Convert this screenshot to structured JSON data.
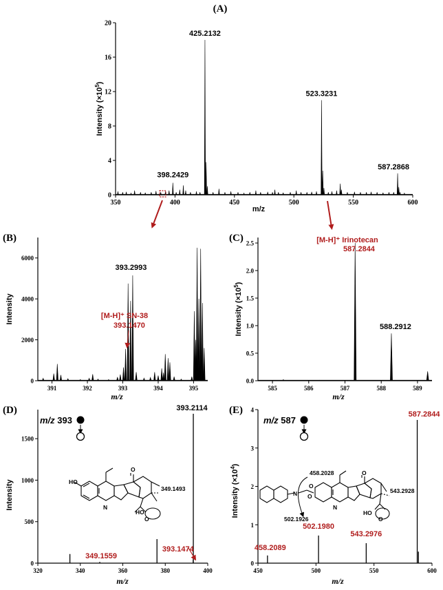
{
  "colors": {
    "ink": "#000000",
    "accent_red": "#b01c1c"
  },
  "chart_data": [
    {
      "id": "A",
      "type": "line",
      "title": "(A)",
      "xlabel": "m/z",
      "ylabel": "Intensity (×10",
      "ylabel_sup": "5",
      "ylabel_end": ")",
      "xlim": [
        350,
        600
      ],
      "ylim": [
        0,
        20
      ],
      "xticks": [
        350,
        400,
        450,
        500,
        550,
        600
      ],
      "yticks": [
        0,
        4,
        8,
        12,
        16,
        20
      ],
      "peaks": [
        [
          352,
          0.4
        ],
        [
          356,
          0.3
        ],
        [
          359,
          0.35
        ],
        [
          363,
          0.2
        ],
        [
          366,
          0.5
        ],
        [
          371,
          0.3
        ],
        [
          375,
          0.25
        ],
        [
          380,
          0.3
        ],
        [
          384,
          0.45
        ],
        [
          388,
          0.3
        ],
        [
          392,
          0.4
        ],
        [
          395,
          0.5
        ],
        [
          398.2,
          1.4
        ],
        [
          401,
          0.3
        ],
        [
          404,
          0.6
        ],
        [
          407,
          1.1
        ],
        [
          409,
          0.5
        ],
        [
          413,
          0.3
        ],
        [
          418,
          0.4
        ],
        [
          421,
          0.3
        ],
        [
          425.2,
          18.0
        ],
        [
          426.2,
          3.8
        ],
        [
          427.2,
          1.0
        ],
        [
          432,
          0.3
        ],
        [
          437,
          0.7
        ],
        [
          442,
          0.3
        ],
        [
          447,
          0.4
        ],
        [
          453,
          0.3
        ],
        [
          458,
          0.2
        ],
        [
          463,
          0.3
        ],
        [
          468,
          0.5
        ],
        [
          472,
          0.3
        ],
        [
          478,
          0.35
        ],
        [
          482,
          0.3
        ],
        [
          484,
          0.6
        ],
        [
          487,
          0.3
        ],
        [
          491,
          0.25
        ],
        [
          497,
          0.3
        ],
        [
          502,
          0.5
        ],
        [
          506,
          0.3
        ],
        [
          511,
          0.3
        ],
        [
          515,
          0.35
        ],
        [
          519,
          0.4
        ],
        [
          523.3,
          11.0
        ],
        [
          524.3,
          2.8
        ],
        [
          525.3,
          0.8
        ],
        [
          529,
          0.3
        ],
        [
          532,
          0.4
        ],
        [
          536,
          0.5
        ],
        [
          539,
          1.3
        ],
        [
          540,
          0.6
        ],
        [
          545,
          0.3
        ],
        [
          551,
          0.35
        ],
        [
          556,
          0.3
        ],
        [
          561,
          0.3
        ],
        [
          565,
          0.35
        ],
        [
          570,
          0.3
        ],
        [
          575,
          0.25
        ],
        [
          580,
          0.3
        ],
        [
          584,
          0.3
        ],
        [
          587.3,
          2.5
        ],
        [
          588.3,
          0.9
        ],
        [
          589.3,
          0.3
        ],
        [
          593,
          0.2
        ]
      ],
      "annotations": [
        {
          "label": "425.2132",
          "x": 425.2,
          "y": 18.0
        },
        {
          "label": "523.3231",
          "x": 523.3,
          "y": 11.0
        },
        {
          "label": "587.2868",
          "x": 587.3,
          "y": 2.5
        },
        {
          "label": "398.2429",
          "x": 398.2,
          "y": 1.4
        }
      ]
    },
    {
      "id": "B",
      "type": "line",
      "title": "(B)",
      "xlabel": "m/z",
      "ylabel": "Intensity",
      "xlim": [
        390.6,
        395.4
      ],
      "ylim": [
        0,
        7000
      ],
      "xticks": [
        391,
        392,
        393,
        394,
        395
      ],
      "yticks": [
        0,
        2000,
        4000,
        6000
      ],
      "peaks": [
        [
          390.75,
          120
        ],
        [
          391.05,
          350
        ],
        [
          391.15,
          820
        ],
        [
          391.25,
          280
        ],
        [
          391.45,
          100
        ],
        [
          391.8,
          60
        ],
        [
          392.05,
          120
        ],
        [
          392.15,
          320
        ],
        [
          392.3,
          80
        ],
        [
          392.6,
          60
        ],
        [
          392.85,
          180
        ],
        [
          392.93,
          300
        ],
        [
          393.02,
          650
        ],
        [
          393.08,
          1550
        ],
        [
          393.15,
          4750
        ],
        [
          393.22,
          3900
        ],
        [
          393.28,
          5150
        ],
        [
          393.38,
          420
        ],
        [
          393.6,
          130
        ],
        [
          393.78,
          160
        ],
        [
          393.9,
          420
        ],
        [
          394.0,
          250
        ],
        [
          394.1,
          600
        ],
        [
          394.15,
          400
        ],
        [
          394.2,
          1300
        ],
        [
          394.28,
          1100
        ],
        [
          394.33,
          900
        ],
        [
          394.45,
          200
        ],
        [
          394.65,
          80
        ],
        [
          394.95,
          200
        ],
        [
          395.02,
          3400
        ],
        [
          395.06,
          2000
        ],
        [
          395.1,
          6500
        ],
        [
          395.15,
          4000
        ],
        [
          395.2,
          6450
        ],
        [
          395.25,
          3800
        ],
        [
          395.3,
          1600
        ]
      ],
      "annotations": [
        {
          "label": "393.2993",
          "x": 393.29,
          "y": 5150
        },
        {
          "label": "[M-H]⁺ SN-38",
          "label2": "393.1470",
          "x": 393.15,
          "y": 1600
        }
      ]
    },
    {
      "id": "C",
      "type": "line",
      "title": "(C)",
      "xlabel": "m/z",
      "ylabel": "Intensity (×10",
      "ylabel_sup": "5",
      "ylabel_end": ")",
      "xlim": [
        584.6,
        589.4
      ],
      "ylim": [
        0,
        2.6
      ],
      "xticks": [
        585,
        586,
        587,
        588,
        589
      ],
      "yticks": [
        0.0,
        0.5,
        1.0,
        1.5,
        2.0,
        2.5
      ],
      "peaks": [
        [
          585.3,
          0.02
        ],
        [
          586.3,
          0.01
        ],
        [
          587.28,
          2.5
        ],
        [
          588.28,
          0.86
        ],
        [
          589.28,
          0.17
        ]
      ],
      "annotations": [
        {
          "label": "[M-H]⁺ Irinotecan",
          "label2": "587.2844",
          "x": 587.28,
          "y": 2.5
        },
        {
          "label": "588.2912",
          "x": 588.28,
          "y": 0.86
        }
      ]
    },
    {
      "id": "D",
      "type": "bar",
      "title": "(D)",
      "xlabel": "m/z",
      "ylabel": "Intensity",
      "precursor_prefix": "m/z",
      "precursor_value": "393",
      "xlim": [
        320,
        400
      ],
      "ylim": [
        0,
        1850
      ],
      "xticks": [
        320,
        340,
        360,
        380,
        400
      ],
      "yticks": [
        0,
        500,
        1000,
        1500
      ],
      "peaks": [
        [
          335.1,
          110
        ],
        [
          349.16,
          15
        ],
        [
          376.1,
          290
        ],
        [
          393.15,
          40
        ],
        [
          393.21,
          1800
        ]
      ],
      "annotations": [
        {
          "label": "393.2114",
          "x": 393.21,
          "y": 1800,
          "color": "black"
        },
        {
          "label": "393.1474",
          "x": 393.15,
          "y": 40,
          "color": "red"
        },
        {
          "label": "349.1559",
          "x": 349.16,
          "y": 15,
          "color": "red"
        }
      ],
      "structure_fragment_label": "349.1493"
    },
    {
      "id": "E",
      "type": "bar",
      "title": "(E)",
      "xlabel": "m/z",
      "ylabel": "Intensity (×10",
      "ylabel_sup": "4",
      "ylabel_end": ")",
      "precursor_prefix": "m/z",
      "precursor_value": "587",
      "xlim": [
        450,
        600
      ],
      "ylim": [
        0,
        4
      ],
      "xticks": [
        450,
        500,
        550,
        600
      ],
      "yticks": [
        0,
        1,
        2,
        3,
        4
      ],
      "peaks": [
        [
          458.21,
          0.2
        ],
        [
          502.2,
          0.72
        ],
        [
          543.3,
          0.52
        ],
        [
          587.28,
          3.73
        ],
        [
          588.3,
          0.3
        ]
      ],
      "annotations": [
        {
          "label": "587.2844",
          "x": 587.28,
          "y": 3.73,
          "color": "red"
        },
        {
          "label": "502.1980",
          "x": 502.2,
          "y": 0.72,
          "color": "red"
        },
        {
          "label": "543.2976",
          "x": 543.3,
          "y": 0.52,
          "color": "red"
        },
        {
          "label": "458.2089",
          "x": 458.21,
          "y": 0.2,
          "color": "red"
        }
      ],
      "structure_fragment_labels": [
        "458.2028",
        "543.2928",
        "502.1926"
      ]
    }
  ]
}
